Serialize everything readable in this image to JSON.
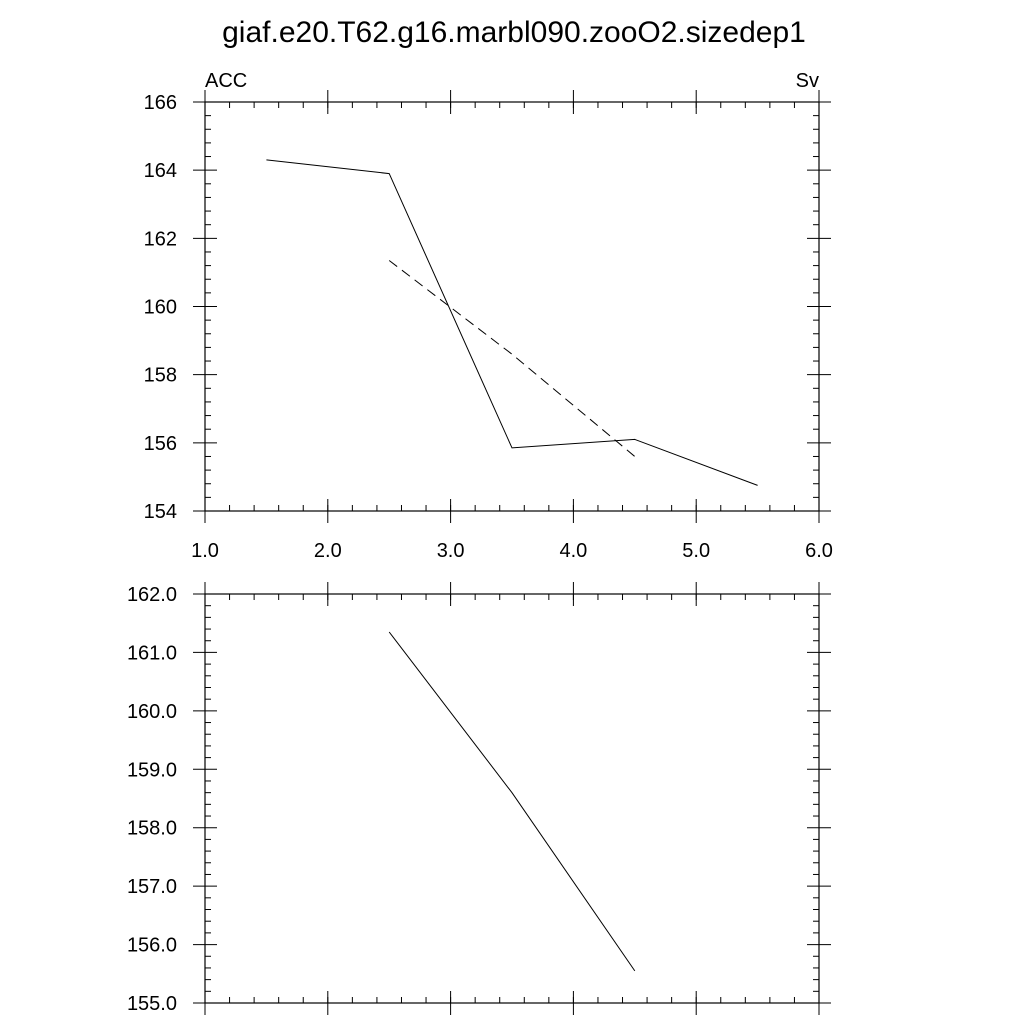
{
  "page": {
    "title": "giaf.e20.T62.g16.marbl090.zooO2.sizedep1"
  },
  "chart_data": [
    {
      "type": "line",
      "title": "giaf.e20.T62.g16.marbl090.zooO2.sizedep1",
      "left_label": "ACC",
      "right_label": "Sv",
      "xlim": [
        1.0,
        6.0
      ],
      "ylim": [
        154,
        166
      ],
      "x_ticks": [
        "1.0",
        "2.0",
        "3.0",
        "4.0",
        "5.0",
        "6.0"
      ],
      "y_ticks": [
        "154",
        "156",
        "158",
        "160",
        "162",
        "164",
        "166"
      ],
      "series": [
        {
          "style": "solid",
          "x": [
            1.5,
            2.5,
            3.5,
            4.5,
            5.5
          ],
          "y": [
            164.3,
            163.9,
            155.85,
            156.1,
            154.75
          ]
        },
        {
          "style": "dashed",
          "x": [
            2.5,
            3.5,
            4.5
          ],
          "y": [
            161.35,
            158.6,
            155.6
          ]
        }
      ]
    },
    {
      "type": "line",
      "xlim": [
        1.0,
        6.0
      ],
      "ylim": [
        155.0,
        162.0
      ],
      "x_ticks": [],
      "y_ticks": [
        "155.0",
        "156.0",
        "157.0",
        "158.0",
        "159.0",
        "160.0",
        "161.0",
        "162.0"
      ],
      "series": [
        {
          "style": "solid",
          "x": [
            2.5,
            3.5,
            4.5
          ],
          "y": [
            161.35,
            158.6,
            155.55
          ]
        }
      ]
    }
  ]
}
